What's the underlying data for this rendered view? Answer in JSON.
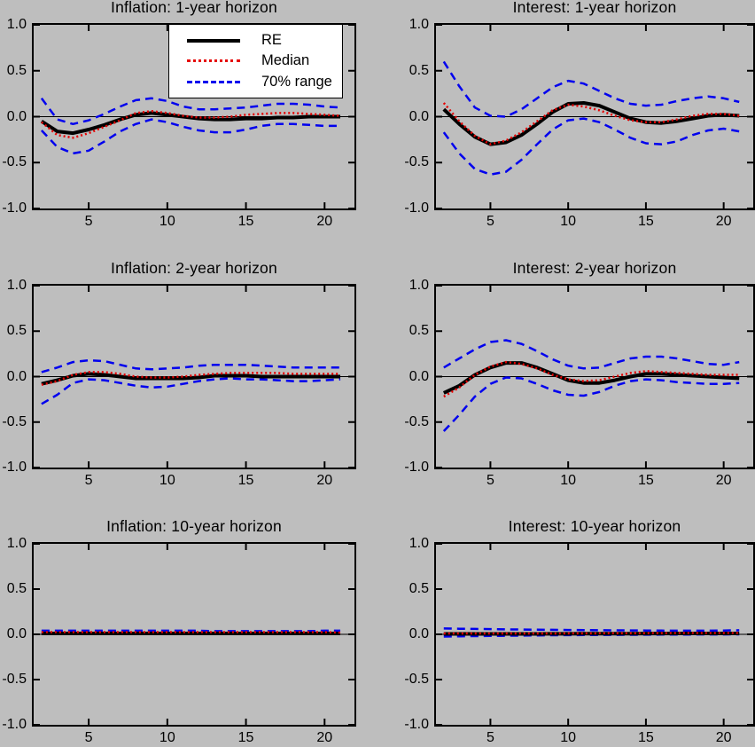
{
  "figure": {
    "background_color": "#bebebe",
    "plot_background_color": "#bebebe",
    "border_color": "#000000"
  },
  "legend": {
    "position": "top-center of first subplot",
    "entries": [
      {
        "label": "RE",
        "style": "re",
        "color": "#000000"
      },
      {
        "label": "Median",
        "style": "median",
        "color": "#e60000"
      },
      {
        "label": "70% range",
        "style": "range",
        "color": "#0000ee"
      }
    ]
  },
  "series_styles": {
    "re": {
      "color": "#000000",
      "width": 4,
      "dash": ""
    },
    "median": {
      "color": "#e60000",
      "width": 2.5,
      "dash": "2 3"
    },
    "range": {
      "color": "#0000ee",
      "width": 2.5,
      "dash": "9 6"
    }
  },
  "axes": {
    "x_range": [
      1.5,
      21.9
    ],
    "y_range": [
      -1.0,
      1.0
    ],
    "x_tick_values": [
      5,
      10,
      15,
      20
    ],
    "y_tick_values": [
      1.0,
      0.5,
      0.0,
      -0.5,
      -1.0
    ],
    "x_tick_labels": [
      "5",
      "10",
      "15",
      "20"
    ],
    "y_tick_labels": [
      "1.0",
      "0.5",
      "0.0",
      "-0.5",
      "-1.0"
    ],
    "grid": false,
    "zero_line": true
  },
  "chart_data": [
    {
      "type": "line",
      "title": "Inflation: 1-year horizon",
      "xlabel": "",
      "ylabel": "",
      "ylim": [
        -1.0,
        1.0
      ],
      "x": [
        2,
        3,
        4,
        5,
        6,
        7,
        8,
        9,
        10,
        11,
        12,
        13,
        14,
        15,
        16,
        17,
        18,
        19,
        20,
        21
      ],
      "series": [
        {
          "name": "70% upper",
          "style": "range",
          "values": [
            0.2,
            -0.03,
            -0.08,
            -0.04,
            0.03,
            0.11,
            0.18,
            0.2,
            0.17,
            0.11,
            0.08,
            0.08,
            0.09,
            0.1,
            0.12,
            0.14,
            0.14,
            0.13,
            0.11,
            0.1
          ]
        },
        {
          "name": "70% lower",
          "style": "range",
          "values": [
            -0.15,
            -0.33,
            -0.4,
            -0.37,
            -0.27,
            -0.16,
            -0.08,
            -0.03,
            -0.06,
            -0.11,
            -0.15,
            -0.17,
            -0.17,
            -0.14,
            -0.1,
            -0.08,
            -0.08,
            -0.09,
            -0.1,
            -0.1
          ]
        },
        {
          "name": "RE",
          "style": "re",
          "values": [
            -0.05,
            -0.16,
            -0.18,
            -0.14,
            -0.09,
            -0.03,
            0.02,
            0.04,
            0.02,
            0.0,
            -0.02,
            -0.03,
            -0.03,
            -0.02,
            -0.02,
            -0.01,
            -0.01,
            0.0,
            0.0,
            0.0
          ]
        },
        {
          "name": "Median",
          "style": "median",
          "values": [
            -0.06,
            -0.2,
            -0.23,
            -0.18,
            -0.11,
            -0.04,
            0.04,
            0.06,
            0.04,
            0.01,
            -0.01,
            -0.01,
            0.0,
            0.02,
            0.03,
            0.04,
            0.04,
            0.03,
            0.02,
            0.01
          ]
        }
      ]
    },
    {
      "type": "line",
      "title": "Interest: 1-year horizon",
      "xlabel": "",
      "ylabel": "",
      "ylim": [
        -1.0,
        1.0
      ],
      "x": [
        2,
        3,
        4,
        5,
        6,
        7,
        8,
        9,
        10,
        11,
        12,
        13,
        14,
        15,
        16,
        17,
        18,
        19,
        20,
        21
      ],
      "series": [
        {
          "name": "70% upper",
          "style": "range",
          "values": [
            0.6,
            0.33,
            0.1,
            0.01,
            0.0,
            0.08,
            0.2,
            0.32,
            0.39,
            0.36,
            0.28,
            0.2,
            0.14,
            0.12,
            0.13,
            0.17,
            0.2,
            0.22,
            0.2,
            0.16
          ]
        },
        {
          "name": "70% lower",
          "style": "range",
          "values": [
            -0.17,
            -0.4,
            -0.57,
            -0.63,
            -0.6,
            -0.47,
            -0.3,
            -0.14,
            -0.04,
            -0.02,
            -0.06,
            -0.14,
            -0.23,
            -0.29,
            -0.3,
            -0.27,
            -0.2,
            -0.15,
            -0.13,
            -0.16
          ]
        },
        {
          "name": "RE",
          "style": "re",
          "values": [
            0.08,
            -0.08,
            -0.22,
            -0.3,
            -0.28,
            -0.2,
            -0.08,
            0.05,
            0.14,
            0.15,
            0.12,
            0.05,
            -0.02,
            -0.06,
            -0.07,
            -0.05,
            -0.02,
            0.01,
            0.02,
            0.01
          ]
        },
        {
          "name": "Median",
          "style": "median",
          "values": [
            0.15,
            -0.05,
            -0.21,
            -0.3,
            -0.26,
            -0.17,
            -0.05,
            0.07,
            0.13,
            0.11,
            0.07,
            0.01,
            -0.04,
            -0.06,
            -0.06,
            -0.03,
            0.01,
            0.03,
            0.03,
            0.01
          ]
        }
      ]
    },
    {
      "type": "line",
      "title": "Inflation: 2-year horizon",
      "xlabel": "",
      "ylabel": "",
      "ylim": [
        -1.0,
        1.0
      ],
      "x": [
        2,
        3,
        4,
        5,
        6,
        7,
        8,
        9,
        10,
        11,
        12,
        13,
        14,
        15,
        16,
        17,
        18,
        19,
        20,
        21
      ],
      "series": [
        {
          "name": "70% upper",
          "style": "range",
          "values": [
            0.05,
            0.1,
            0.16,
            0.18,
            0.17,
            0.13,
            0.09,
            0.08,
            0.09,
            0.1,
            0.12,
            0.13,
            0.13,
            0.13,
            0.12,
            0.11,
            0.1,
            0.1,
            0.1,
            0.1
          ]
        },
        {
          "name": "70% lower",
          "style": "range",
          "values": [
            -0.3,
            -0.2,
            -0.07,
            -0.03,
            -0.04,
            -0.07,
            -0.1,
            -0.12,
            -0.11,
            -0.08,
            -0.05,
            -0.03,
            -0.02,
            -0.03,
            -0.03,
            -0.04,
            -0.05,
            -0.05,
            -0.04,
            -0.03
          ]
        },
        {
          "name": "RE",
          "style": "re",
          "values": [
            -0.08,
            -0.04,
            0.01,
            0.03,
            0.02,
            0.0,
            -0.02,
            -0.02,
            -0.02,
            -0.02,
            -0.01,
            0.01,
            0.01,
            0.01,
            0.0,
            0.0,
            0.0,
            0.0,
            0.0,
            0.0
          ]
        },
        {
          "name": "Median",
          "style": "median",
          "values": [
            -0.09,
            -0.05,
            0.02,
            0.05,
            0.05,
            0.03,
            0.0,
            -0.01,
            -0.01,
            0.0,
            0.02,
            0.03,
            0.04,
            0.04,
            0.04,
            0.04,
            0.03,
            0.03,
            0.03,
            0.03
          ]
        }
      ]
    },
    {
      "type": "line",
      "title": "Interest: 2-year horizon",
      "xlabel": "",
      "ylabel": "",
      "ylim": [
        -1.0,
        1.0
      ],
      "x": [
        2,
        3,
        4,
        5,
        6,
        7,
        8,
        9,
        10,
        11,
        12,
        13,
        14,
        15,
        16,
        17,
        18,
        19,
        20,
        21
      ],
      "series": [
        {
          "name": "70% upper",
          "style": "range",
          "values": [
            0.1,
            0.2,
            0.3,
            0.38,
            0.4,
            0.36,
            0.28,
            0.19,
            0.12,
            0.09,
            0.1,
            0.15,
            0.2,
            0.22,
            0.22,
            0.2,
            0.17,
            0.14,
            0.13,
            0.16
          ]
        },
        {
          "name": "70% lower",
          "style": "range",
          "values": [
            -0.6,
            -0.42,
            -0.22,
            -0.08,
            -0.01,
            -0.02,
            -0.08,
            -0.15,
            -0.2,
            -0.21,
            -0.17,
            -0.1,
            -0.05,
            -0.03,
            -0.04,
            -0.06,
            -0.07,
            -0.08,
            -0.08,
            -0.07
          ]
        },
        {
          "name": "RE",
          "style": "re",
          "values": [
            -0.18,
            -0.1,
            0.02,
            0.1,
            0.15,
            0.15,
            0.1,
            0.03,
            -0.04,
            -0.07,
            -0.07,
            -0.04,
            0.0,
            0.03,
            0.03,
            0.02,
            0.01,
            0.0,
            -0.01,
            -0.02
          ]
        },
        {
          "name": "Median",
          "style": "median",
          "values": [
            -0.22,
            -0.12,
            0.02,
            0.11,
            0.16,
            0.14,
            0.09,
            0.02,
            -0.03,
            -0.05,
            -0.04,
            0.0,
            0.04,
            0.06,
            0.05,
            0.04,
            0.03,
            0.02,
            0.02,
            0.02
          ]
        }
      ]
    },
    {
      "type": "line",
      "title": "Inflation: 10-year horizon",
      "xlabel": "",
      "ylabel": "",
      "ylim": [
        -1.0,
        1.0
      ],
      "x": [
        2,
        3,
        4,
        5,
        6,
        7,
        8,
        9,
        10,
        11,
        12,
        13,
        14,
        15,
        16,
        17,
        18,
        19,
        20,
        21
      ],
      "series": [
        {
          "name": "70% upper",
          "style": "range",
          "values": [
            0.04,
            0.04,
            0.04,
            0.04,
            0.04,
            0.04,
            0.04,
            0.04,
            0.04,
            0.04,
            0.04,
            0.035,
            0.035,
            0.035,
            0.035,
            0.035,
            0.035,
            0.035,
            0.04,
            0.04
          ]
        },
        {
          "name": "70% lower",
          "style": "range",
          "values": [
            0.015,
            0.015,
            0.015,
            0.015,
            0.015,
            0.015,
            0.015,
            0.015,
            0.015,
            0.015,
            0.015,
            0.015,
            0.015,
            0.015,
            0.015,
            0.015,
            0.015,
            0.015,
            0.015,
            0.015
          ]
        },
        {
          "name": "RE",
          "style": "re",
          "values": [
            0.01,
            0.01,
            0.01,
            0.01,
            0.01,
            0.01,
            0.01,
            0.01,
            0.01,
            0.01,
            0.01,
            0.01,
            0.01,
            0.01,
            0.01,
            0.01,
            0.01,
            0.01,
            0.01,
            0.01
          ]
        },
        {
          "name": "Median",
          "style": "median",
          "values": [
            0.025,
            0.025,
            0.025,
            0.025,
            0.025,
            0.025,
            0.025,
            0.025,
            0.025,
            0.025,
            0.025,
            0.025,
            0.025,
            0.025,
            0.025,
            0.025,
            0.025,
            0.025,
            0.025,
            0.02
          ]
        }
      ]
    },
    {
      "type": "line",
      "title": "Interest: 10-year horizon",
      "xlabel": "",
      "ylabel": "",
      "ylim": [
        -1.0,
        1.0
      ],
      "x": [
        2,
        3,
        4,
        5,
        6,
        7,
        8,
        9,
        10,
        11,
        12,
        13,
        14,
        15,
        16,
        17,
        18,
        19,
        20,
        21
      ],
      "series": [
        {
          "name": "70% upper",
          "style": "range",
          "values": [
            0.065,
            0.062,
            0.06,
            0.058,
            0.055,
            0.053,
            0.051,
            0.05,
            0.048,
            0.047,
            0.045,
            0.044,
            0.043,
            0.042,
            0.041,
            0.04,
            0.04,
            0.04,
            0.042,
            0.045
          ]
        },
        {
          "name": "70% lower",
          "style": "range",
          "values": [
            -0.025,
            -0.022,
            -0.02,
            -0.018,
            -0.016,
            -0.014,
            -0.012,
            -0.01,
            -0.009,
            -0.008,
            -0.007,
            -0.006,
            -0.005,
            -0.004,
            -0.003,
            -0.002,
            -0.002,
            -0.001,
            -0.001,
            0.0
          ]
        },
        {
          "name": "RE",
          "style": "re",
          "values": [
            0.005,
            0.005,
            0.005,
            0.005,
            0.005,
            0.005,
            0.005,
            0.006,
            0.006,
            0.007,
            0.007,
            0.008,
            0.008,
            0.009,
            0.009,
            0.01,
            0.01,
            0.01,
            0.01,
            0.01
          ]
        },
        {
          "name": "Median",
          "style": "median",
          "values": [
            0.01,
            0.01,
            0.01,
            0.01,
            0.01,
            0.01,
            0.01,
            0.01,
            0.011,
            0.011,
            0.012,
            0.012,
            0.013,
            0.013,
            0.014,
            0.015,
            0.015,
            0.015,
            0.015,
            0.015
          ]
        }
      ]
    }
  ]
}
